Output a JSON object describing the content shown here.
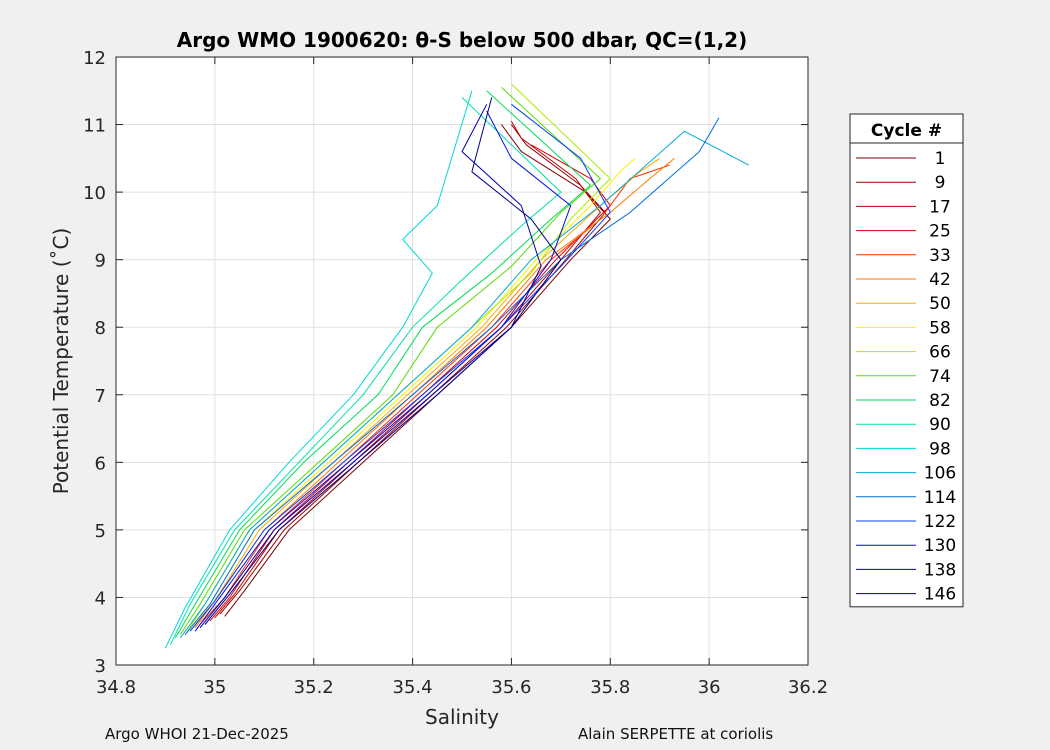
{
  "chart_data": {
    "type": "line",
    "title": "Argo WMO 1900620: θ-S below 500 dbar,  QC=(1,2)",
    "xlabel": "Salinity",
    "ylabel": "Potential Temperature (˚C)",
    "xlim": [
      34.8,
      36.2
    ],
    "ylim": [
      3,
      12
    ],
    "xticks": [
      34.8,
      35,
      35.2,
      35.4,
      35.6,
      35.8,
      36,
      36.2
    ],
    "xtick_labels": [
      "34.8",
      "35",
      "35.2",
      "35.4",
      "35.6",
      "35.8",
      "36",
      "36.2"
    ],
    "yticks": [
      3,
      4,
      5,
      6,
      7,
      8,
      9,
      10,
      11,
      12
    ],
    "ytick_labels": [
      "3",
      "4",
      "5",
      "6",
      "7",
      "8",
      "9",
      "10",
      "11",
      "12"
    ],
    "grid": true,
    "legend_title": "Cycle #",
    "legend_position": "right, outside axes",
    "series": [
      {
        "name": "1",
        "color": "#7f0000",
        "points": [
          [
            35.02,
            3.72
          ],
          [
            35.06,
            4.1
          ],
          [
            35.15,
            5.0
          ],
          [
            35.3,
            6.0
          ],
          [
            35.45,
            7.0
          ],
          [
            35.6,
            8.0
          ],
          [
            35.72,
            9.0
          ],
          [
            35.8,
            9.6
          ],
          [
            35.75,
            10.0
          ],
          [
            35.62,
            10.6
          ],
          [
            35.58,
            11.0
          ]
        ]
      },
      {
        "name": "9",
        "color": "#9e0000",
        "points": [
          [
            35.01,
            3.75
          ],
          [
            35.05,
            4.1
          ],
          [
            35.14,
            5.0
          ],
          [
            35.29,
            6.0
          ],
          [
            35.44,
            7.0
          ],
          [
            35.59,
            8.0
          ],
          [
            35.71,
            9.0
          ],
          [
            35.79,
            9.7
          ],
          [
            35.74,
            10.1
          ],
          [
            35.63,
            10.7
          ],
          [
            35.6,
            11.0
          ]
        ]
      },
      {
        "name": "17",
        "color": "#bf0000",
        "points": [
          [
            35.0,
            3.7
          ],
          [
            35.04,
            4.05
          ],
          [
            35.13,
            5.0
          ],
          [
            35.28,
            6.0
          ],
          [
            35.43,
            7.0
          ],
          [
            35.58,
            8.0
          ],
          [
            35.7,
            9.0
          ],
          [
            35.78,
            9.7
          ],
          [
            35.73,
            10.2
          ],
          [
            35.62,
            10.8
          ],
          [
            35.6,
            11.05
          ]
        ]
      },
      {
        "name": "25",
        "color": "#e00000",
        "points": [
          [
            34.99,
            3.65
          ],
          [
            35.03,
            4.0
          ],
          [
            35.12,
            5.0
          ],
          [
            35.27,
            6.0
          ],
          [
            35.42,
            7.0
          ],
          [
            35.57,
            8.0
          ],
          [
            35.69,
            9.0
          ],
          [
            35.8,
            9.8
          ],
          [
            35.76,
            10.2
          ],
          [
            35.64,
            10.7
          ]
        ]
      },
      {
        "name": "33",
        "color": "#ff3300",
        "points": [
          [
            34.97,
            3.6
          ],
          [
            35.02,
            4.0
          ],
          [
            35.11,
            5.0
          ],
          [
            35.26,
            6.0
          ],
          [
            35.41,
            7.0
          ],
          [
            35.56,
            8.0
          ],
          [
            35.68,
            9.0
          ],
          [
            35.78,
            9.6
          ],
          [
            35.84,
            10.2
          ],
          [
            35.92,
            10.4
          ]
        ]
      },
      {
        "name": "42",
        "color": "#ff7700",
        "points": [
          [
            34.96,
            3.55
          ],
          [
            35.0,
            3.95
          ],
          [
            35.1,
            5.0
          ],
          [
            35.25,
            6.0
          ],
          [
            35.4,
            7.0
          ],
          [
            35.55,
            8.0
          ],
          [
            35.67,
            9.0
          ],
          [
            35.8,
            9.7
          ],
          [
            35.88,
            10.2
          ],
          [
            35.93,
            10.5
          ]
        ]
      },
      {
        "name": "50",
        "color": "#ffaa00",
        "points": [
          [
            34.95,
            3.5
          ],
          [
            35.0,
            3.95
          ],
          [
            35.09,
            5.0
          ],
          [
            35.24,
            6.0
          ],
          [
            35.39,
            7.0
          ],
          [
            35.54,
            8.0
          ],
          [
            35.66,
            9.0
          ],
          [
            35.78,
            9.8
          ],
          [
            35.86,
            10.3
          ],
          [
            35.9,
            10.5
          ]
        ]
      },
      {
        "name": "58",
        "color": "#ffee00",
        "points": [
          [
            34.95,
            3.5
          ],
          [
            34.99,
            3.9
          ],
          [
            35.08,
            5.0
          ],
          [
            35.23,
            6.0
          ],
          [
            35.38,
            7.0
          ],
          [
            35.53,
            8.0
          ],
          [
            35.65,
            9.0
          ],
          [
            35.76,
            9.8
          ],
          [
            35.82,
            10.3
          ],
          [
            35.85,
            10.5
          ]
        ]
      },
      {
        "name": "66",
        "color": "#aaee00",
        "points": [
          [
            34.94,
            3.45
          ],
          [
            34.98,
            3.9
          ],
          [
            35.07,
            5.0
          ],
          [
            35.22,
            6.0
          ],
          [
            35.37,
            7.0
          ],
          [
            35.52,
            8.0
          ],
          [
            35.64,
            8.8
          ],
          [
            35.72,
            9.6
          ],
          [
            35.8,
            10.2
          ],
          [
            35.6,
            11.6
          ]
        ]
      },
      {
        "name": "74",
        "color": "#55dd00",
        "points": [
          [
            34.93,
            3.45
          ],
          [
            34.97,
            3.9
          ],
          [
            35.06,
            5.0
          ],
          [
            35.21,
            6.0
          ],
          [
            35.36,
            7.0
          ],
          [
            35.45,
            8.0
          ],
          [
            35.6,
            8.9
          ],
          [
            35.7,
            9.7
          ],
          [
            35.78,
            10.2
          ],
          [
            35.58,
            11.55
          ]
        ]
      },
      {
        "name": "82",
        "color": "#00dd55",
        "points": [
          [
            34.92,
            3.4
          ],
          [
            34.96,
            3.9
          ],
          [
            35.05,
            5.0
          ],
          [
            35.18,
            6.0
          ],
          [
            35.33,
            7.0
          ],
          [
            35.42,
            8.0
          ],
          [
            35.56,
            8.8
          ],
          [
            35.68,
            9.6
          ],
          [
            35.76,
            10.1
          ],
          [
            35.55,
            11.5
          ]
        ]
      },
      {
        "name": "90",
        "color": "#00e0aa",
        "points": [
          [
            34.91,
            3.3
          ],
          [
            34.95,
            3.9
          ],
          [
            35.04,
            5.0
          ],
          [
            35.17,
            6.0
          ],
          [
            35.3,
            7.0
          ],
          [
            35.4,
            8.0
          ],
          [
            35.5,
            8.7
          ],
          [
            35.62,
            9.5
          ],
          [
            35.7,
            10.0
          ],
          [
            35.5,
            11.4
          ]
        ]
      },
      {
        "name": "98",
        "color": "#00d8d8",
        "points": [
          [
            34.9,
            3.25
          ],
          [
            34.94,
            3.85
          ],
          [
            35.03,
            5.0
          ],
          [
            35.15,
            6.0
          ],
          [
            35.28,
            7.0
          ],
          [
            35.38,
            8.0
          ],
          [
            35.44,
            8.8
          ],
          [
            35.38,
            9.3
          ],
          [
            35.45,
            9.8
          ],
          [
            35.52,
            11.5
          ]
        ]
      },
      {
        "name": "106",
        "color": "#00a8d8",
        "points": [
          [
            34.93,
            3.4
          ],
          [
            34.98,
            3.9
          ],
          [
            35.07,
            5.0
          ],
          [
            35.22,
            6.0
          ],
          [
            35.37,
            7.0
          ],
          [
            35.52,
            8.0
          ],
          [
            35.64,
            9.0
          ],
          [
            35.78,
            9.8
          ],
          [
            35.95,
            10.9
          ],
          [
            36.08,
            10.4
          ]
        ]
      },
      {
        "name": "114",
        "color": "#0070e0",
        "points": [
          [
            34.94,
            3.45
          ],
          [
            34.99,
            3.9
          ],
          [
            35.08,
            5.0
          ],
          [
            35.24,
            6.0
          ],
          [
            35.4,
            7.0
          ],
          [
            35.56,
            8.0
          ],
          [
            35.7,
            9.0
          ],
          [
            35.84,
            9.7
          ],
          [
            35.98,
            10.6
          ],
          [
            36.02,
            11.1
          ]
        ]
      },
      {
        "name": "122",
        "color": "#0040ff",
        "points": [
          [
            34.95,
            3.5
          ],
          [
            35.0,
            3.95
          ],
          [
            35.1,
            5.0
          ],
          [
            35.26,
            6.0
          ],
          [
            35.42,
            7.0
          ],
          [
            35.58,
            8.0
          ],
          [
            35.7,
            8.9
          ],
          [
            35.8,
            9.7
          ],
          [
            35.74,
            10.5
          ],
          [
            35.6,
            11.3
          ]
        ]
      },
      {
        "name": "130",
        "color": "#0010e0",
        "points": [
          [
            34.96,
            3.5
          ],
          [
            35.01,
            4.0
          ],
          [
            35.11,
            5.0
          ],
          [
            35.27,
            6.0
          ],
          [
            35.43,
            7.0
          ],
          [
            35.58,
            8.0
          ],
          [
            35.68,
            9.0
          ],
          [
            35.72,
            9.8
          ],
          [
            35.6,
            10.5
          ],
          [
            35.55,
            11.2
          ]
        ]
      },
      {
        "name": "138",
        "color": "#0000b0",
        "points": [
          [
            34.97,
            3.55
          ],
          [
            35.02,
            4.0
          ],
          [
            35.12,
            5.0
          ],
          [
            35.28,
            6.0
          ],
          [
            35.44,
            7.0
          ],
          [
            35.6,
            8.0
          ],
          [
            35.66,
            8.9
          ],
          [
            35.62,
            9.8
          ],
          [
            35.5,
            10.6
          ],
          [
            35.55,
            11.3
          ]
        ]
      },
      {
        "name": "146",
        "color": "#000080",
        "points": [
          [
            34.98,
            3.6
          ],
          [
            35.03,
            4.05
          ],
          [
            35.13,
            5.0
          ],
          [
            35.29,
            6.0
          ],
          [
            35.45,
            7.0
          ],
          [
            35.6,
            8.0
          ],
          [
            35.7,
            9.0
          ],
          [
            35.64,
            9.6
          ],
          [
            35.52,
            10.3
          ],
          [
            35.56,
            11.4
          ]
        ]
      }
    ]
  },
  "footer": {
    "left": "Argo WHOI 21-Dec-2025",
    "right": "Alain SERPETTE at coriolis"
  }
}
